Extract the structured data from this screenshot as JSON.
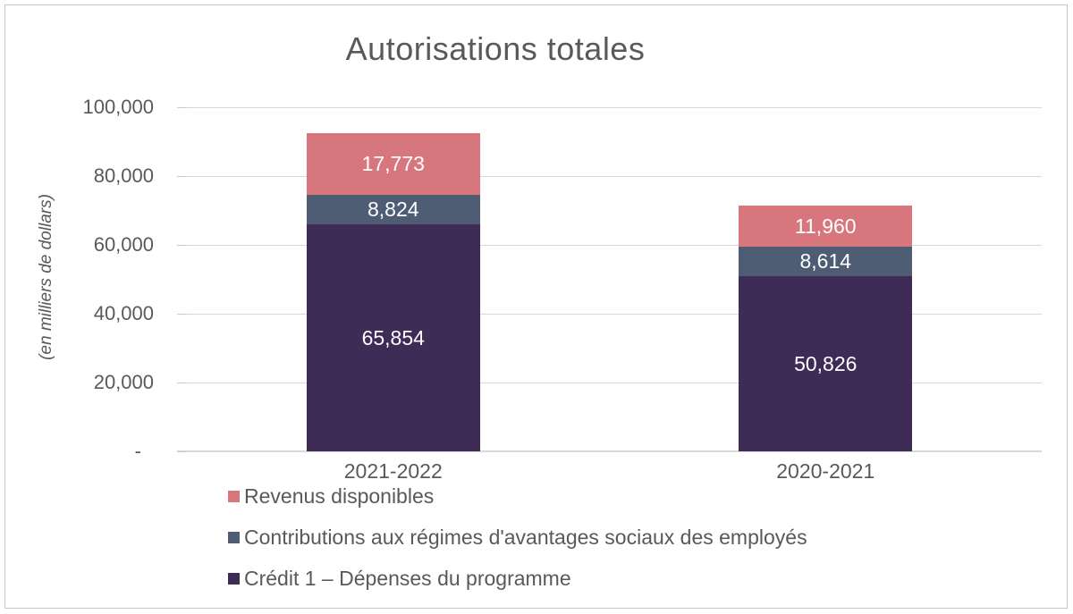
{
  "chart_data": {
    "type": "bar",
    "stacked": true,
    "title": "Autorisations totales",
    "ylabel": "(en milliers de dollars)",
    "xlabel": "",
    "categories": [
      "2021-2022",
      "2020-2021"
    ],
    "series": [
      {
        "name": "Crédit 1 – Dépenses du programme",
        "color": "#3E2B56",
        "values": [
          65854,
          50826
        ],
        "labels": [
          "65,854",
          "50,826"
        ]
      },
      {
        "name": "Contributions aux régimes d'avantages sociaux des employés",
        "color": "#4E5C74",
        "values": [
          8824,
          8614
        ],
        "labels": [
          "8,824",
          "8,614"
        ]
      },
      {
        "name": "Revenus disponibles",
        "color": "#D8767D",
        "values": [
          17773,
          11960
        ],
        "labels": [
          "17,773",
          "11,960"
        ]
      }
    ],
    "totals": [
      92451,
      71400
    ],
    "ylim": [
      0,
      100000
    ],
    "y_ticks": [
      {
        "value": 100000,
        "label": "100,000"
      },
      {
        "value": 80000,
        "label": "80,000"
      },
      {
        "value": 60000,
        "label": "60,000"
      },
      {
        "value": 40000,
        "label": "40,000"
      },
      {
        "value": 20000,
        "label": "20,000"
      },
      {
        "value": 0,
        "label": "-"
      }
    ],
    "grid": true,
    "legend_position": "bottom-left",
    "legend": [
      {
        "label": "Revenus disponibles",
        "color": "#D8767D"
      },
      {
        "label": "Contributions aux régimes d'avantages sociaux des employés",
        "color": "#4E5C74"
      },
      {
        "label": "Crédit 1 – Dépenses du programme",
        "color": "#3E2B56"
      }
    ],
    "value_label_color": "#FFFFFF",
    "text_color": "#595959",
    "gridline_color": "#D9D9D9"
  }
}
